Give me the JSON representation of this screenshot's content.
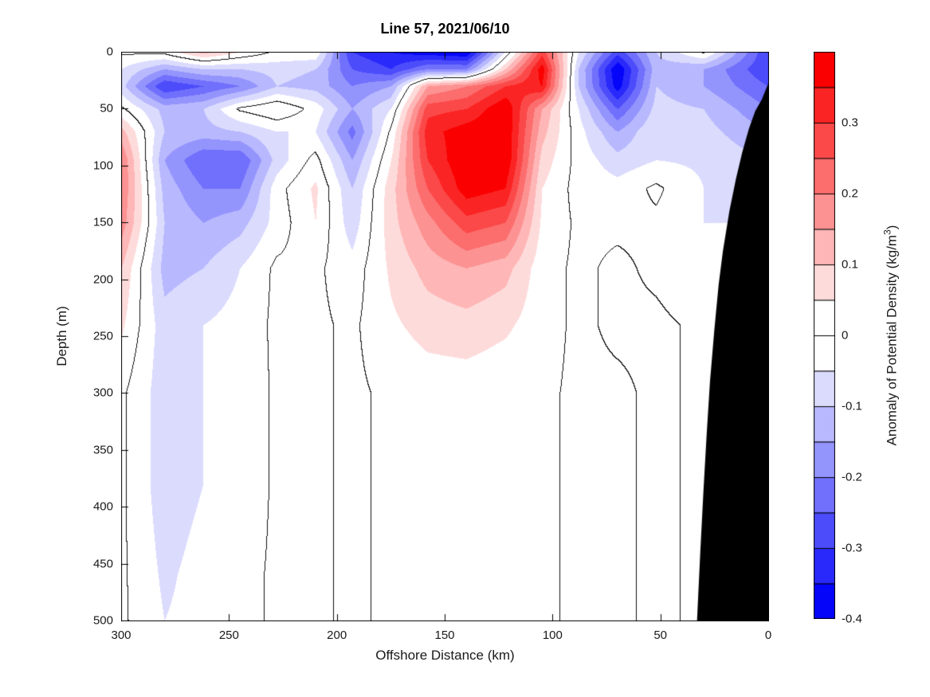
{
  "title": "Line 57, 2021/06/10",
  "axes": {
    "xlabel": "Offshore Distance (km)",
    "ylabel": "Depth (m)",
    "x_range": [
      300,
      0
    ],
    "y_range": [
      0,
      500
    ],
    "x_ticks": [
      "300",
      "250",
      "200",
      "150",
      "100",
      "50",
      "0"
    ],
    "x_tick_values": [
      300,
      250,
      200,
      150,
      100,
      50,
      0
    ],
    "y_ticks": [
      "0",
      "50",
      "100",
      "150",
      "200",
      "250",
      "300",
      "350",
      "400",
      "450",
      "500"
    ],
    "y_tick_values": [
      0,
      50,
      100,
      150,
      200,
      250,
      300,
      350,
      400,
      450,
      500
    ],
    "x_direction": "reversed",
    "box": "on",
    "tick_direction": "in"
  },
  "colorbar": {
    "label": "Anomaly of Potential Density (kg/m³)",
    "label_html": "Anomaly of Potential Density (kg/m<sup>3</sup>)",
    "range": [
      -0.4,
      0.4
    ],
    "segment_step": 0.05,
    "tick_labels": [
      "0.3",
      "0.2",
      "0.1",
      "0",
      "-0.1",
      "-0.2",
      "-0.3",
      "-0.4"
    ],
    "tick_values": [
      0.3,
      0.2,
      0.1,
      0,
      -0.1,
      -0.2,
      -0.3,
      -0.4
    ],
    "positive_color": "#fa0000",
    "negative_color": "#0505fa",
    "zero_color": "#ffffff",
    "edge_color": "#000000"
  },
  "chart_data": {
    "type": "heatmap",
    "subtype": "filled-contour-section",
    "title": "Line 57, 2021/06/10",
    "xlabel": "Offshore Distance (km)",
    "ylabel": "Depth (m)",
    "units": "kg/m3",
    "contour_interval": 0.05,
    "zero_contour_line": true,
    "x_km": [
      300,
      280,
      262,
      245,
      228,
      210,
      193,
      175,
      158,
      140,
      122,
      105,
      88,
      70,
      52,
      30,
      0
    ],
    "depth_m": [
      0,
      15,
      30,
      50,
      70,
      95,
      120,
      150,
      190,
      240,
      300,
      380,
      460,
      500
    ],
    "values": [
      [
        0.01,
        0.02,
        0.12,
        0.05,
        -0.01,
        -0.01,
        -0.3,
        -0.35,
        -0.38,
        -0.4,
        -0.05,
        0.28,
        -0.05,
        -0.28,
        -0.1,
        0.01,
        -0.3
      ],
      [
        -0.05,
        -0.15,
        -0.1,
        -0.1,
        -0.08,
        -0.1,
        -0.25,
        -0.3,
        -0.2,
        -0.2,
        0.1,
        0.38,
        -0.1,
        -0.4,
        -0.12,
        -0.15,
        -0.3
      ],
      [
        -0.08,
        -0.3,
        -0.25,
        -0.2,
        -0.1,
        -0.12,
        -0.2,
        -0.15,
        0.15,
        0.2,
        0.3,
        0.35,
        -0.1,
        -0.38,
        -0.1,
        -0.15,
        -0.25
      ],
      [
        0.01,
        -0.12,
        -0.1,
        0.01,
        0.05,
        -0.02,
        -0.15,
        -0.05,
        0.28,
        0.3,
        0.4,
        0.15,
        -0.05,
        -0.25,
        -0.08,
        -0.1,
        -0.2
      ],
      [
        0.12,
        -0.1,
        -0.12,
        -0.1,
        -0.05,
        -0.05,
        -0.22,
        0.01,
        0.33,
        0.38,
        0.4,
        0.12,
        -0.03,
        -0.15,
        -0.05,
        -0.08,
        -0.15
      ],
      [
        0.2,
        -0.15,
        -0.25,
        -0.25,
        -0.08,
        0.02,
        -0.15,
        0.05,
        0.3,
        0.4,
        0.4,
        0.08,
        -0.02,
        -0.08,
        -0.05,
        -0.06,
        -0.1
      ],
      [
        0.2,
        -0.12,
        -0.2,
        -0.2,
        -0.02,
        0.06,
        -0.1,
        0.08,
        0.25,
        0.38,
        0.35,
        0.05,
        -0.02,
        -0.03,
        0.01,
        -0.05,
        -0.08
      ],
      [
        0.18,
        -0.1,
        -0.15,
        -0.12,
        -0.03,
        0.05,
        -0.08,
        0.08,
        0.18,
        0.28,
        0.25,
        0.04,
        -0.01,
        -0.01,
        -0.01,
        -0.05,
        -0.05
      ],
      [
        0.1,
        -0.12,
        -0.1,
        -0.05,
        0.01,
        0.01,
        -0.03,
        0.06,
        0.12,
        0.15,
        0.12,
        0.02,
        -0.01,
        0.01,
        -0.01,
        -0.04,
        -0.04
      ],
      [
        0.06,
        -0.08,
        -0.05,
        -0.03,
        0.01,
        0.01,
        -0.01,
        0.04,
        0.07,
        0.08,
        0.06,
        0.02,
        -0.01,
        0.01,
        0.01,
        -0.01,
        -0.02
      ],
      [
        0.01,
        -0.08,
        -0.05,
        -0.04,
        0.01,
        0.01,
        -0.01,
        0.01,
        0.02,
        0.02,
        0.01,
        0.01,
        -0.01,
        -0.01,
        0.01,
        -0.01,
        -0.01
      ],
      [
        0.01,
        -0.08,
        -0.05,
        -0.04,
        0.01,
        0.01,
        -0.01,
        0.01,
        0.01,
        0.01,
        0.01,
        0.01,
        -0.01,
        -0.01,
        0.01,
        -0.01,
        -0.01
      ],
      [
        0.01,
        -0.06,
        -0.03,
        -0.02,
        0.01,
        0.01,
        -0.01,
        0.01,
        0.01,
        0.01,
        0.01,
        0.01,
        -0.01,
        -0.01,
        0.01,
        -0.01,
        -0.01
      ],
      [
        0.01,
        -0.05,
        -0.03,
        -0.02,
        0.01,
        0.01,
        -0.01,
        0.01,
        0.01,
        0.01,
        0.01,
        0.01,
        -0.01,
        -0.01,
        0.01,
        -0.01,
        -0.01
      ]
    ],
    "bathymetry_polygon_km_depth": [
      [
        0,
        28
      ],
      [
        3,
        42
      ],
      [
        6,
        52
      ],
      [
        9,
        68
      ],
      [
        12,
        88
      ],
      [
        15,
        112
      ],
      [
        18,
        140
      ],
      [
        21,
        175
      ],
      [
        23,
        205
      ],
      [
        25,
        245
      ],
      [
        27,
        290
      ],
      [
        28.5,
        335
      ],
      [
        30,
        385
      ],
      [
        31.5,
        440
      ],
      [
        33,
        500
      ],
      [
        0,
        500
      ]
    ],
    "bathymetry_color": "#000000"
  }
}
